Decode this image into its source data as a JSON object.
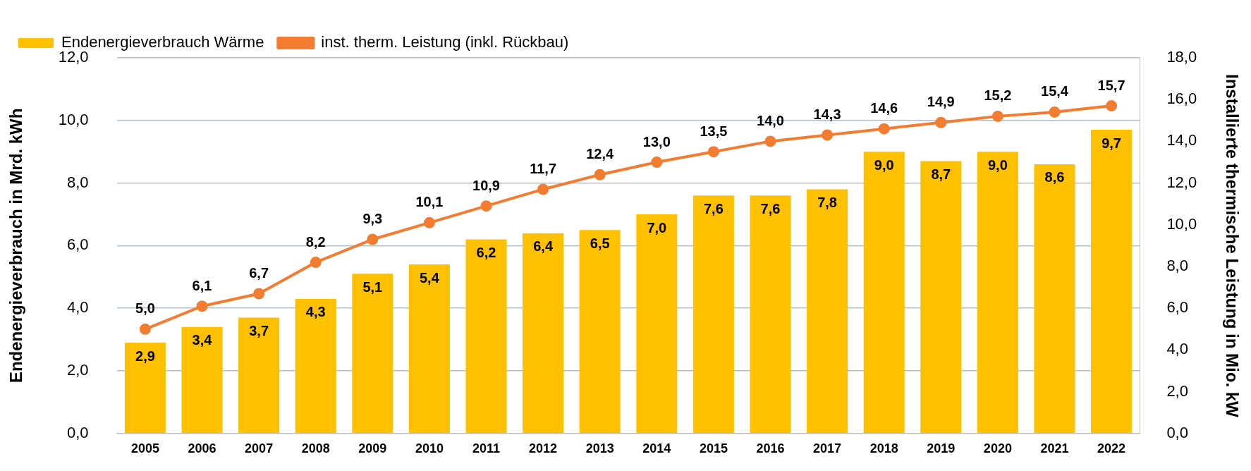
{
  "chart_data": {
    "type": "bar",
    "xlabel": null,
    "ylabel": "Endenergieverbrauch in Mrd. kWh",
    "y2label": "Installierte thermische Leistung in Mio. kW",
    "categories": [
      "2005",
      "2006",
      "2007",
      "2008",
      "2009",
      "2010",
      "2011",
      "2012",
      "2013",
      "2014",
      "2015",
      "2016",
      "2017",
      "2018",
      "2019",
      "2020",
      "2021",
      "2022"
    ],
    "series": [
      {
        "name": "Endenergieverbrauch Wärme",
        "color": "#ffc000",
        "values": [
          2.9,
          3.4,
          3.7,
          4.3,
          5.1,
          5.4,
          6.2,
          6.4,
          6.5,
          7.0,
          7.6,
          7.6,
          7.8,
          9.0,
          8.7,
          9.0,
          8.6,
          9.7
        ],
        "value_labels": [
          "2,9",
          "3,4",
          "3,7",
          "4,3",
          "5,1",
          "5,4",
          "6,2",
          "6,4",
          "6,5",
          "7,0",
          "7,6",
          "7,6",
          "7,8",
          "9,0",
          "8,7",
          "9,0",
          "8,6",
          "9,7"
        ]
      },
      {
        "name": "inst. therm. Leistung (inkl. Rückbau)",
        "type": "line",
        "axis": "y2",
        "color": "#f47c30",
        "values": [
          5.0,
          6.1,
          6.7,
          8.2,
          9.3,
          10.1,
          10.9,
          11.7,
          12.4,
          13.0,
          13.5,
          14.0,
          14.3,
          14.6,
          14.9,
          15.2,
          15.4,
          15.7
        ],
        "value_labels": [
          "5,0",
          "6,1",
          "6,7",
          "8,2",
          "9,3",
          "10,1",
          "10,9",
          "11,7",
          "12,4",
          "13,0",
          "13,5",
          "14,0",
          "14,3",
          "14,6",
          "14,9",
          "15,2",
          "15,4",
          "15,7"
        ]
      }
    ],
    "ylim": [
      0,
      12
    ],
    "yticks": [
      {
        "value": 0,
        "label": "0,0"
      },
      {
        "value": 2,
        "label": "2,0"
      },
      {
        "value": 4,
        "label": "4,0"
      },
      {
        "value": 6,
        "label": "6,0"
      },
      {
        "value": 8,
        "label": "8,0"
      },
      {
        "value": 10,
        "label": "10,0"
      },
      {
        "value": 12,
        "label": "12,0"
      }
    ],
    "y2lim": [
      0,
      18
    ],
    "y2ticks": [
      {
        "value": 0,
        "label": "0,0"
      },
      {
        "value": 2,
        "label": "2,0"
      },
      {
        "value": 4,
        "label": "4,0"
      },
      {
        "value": 6,
        "label": "6,0"
      },
      {
        "value": 8,
        "label": "8,0"
      },
      {
        "value": 10,
        "label": "10,0"
      },
      {
        "value": 12,
        "label": "12,0"
      },
      {
        "value": 14,
        "label": "14,0"
      },
      {
        "value": 16,
        "label": "16,0"
      },
      {
        "value": 18,
        "label": "18,0"
      }
    ],
    "grid": "y",
    "legend": "top left",
    "marker": "circle",
    "line_style": "solid"
  }
}
